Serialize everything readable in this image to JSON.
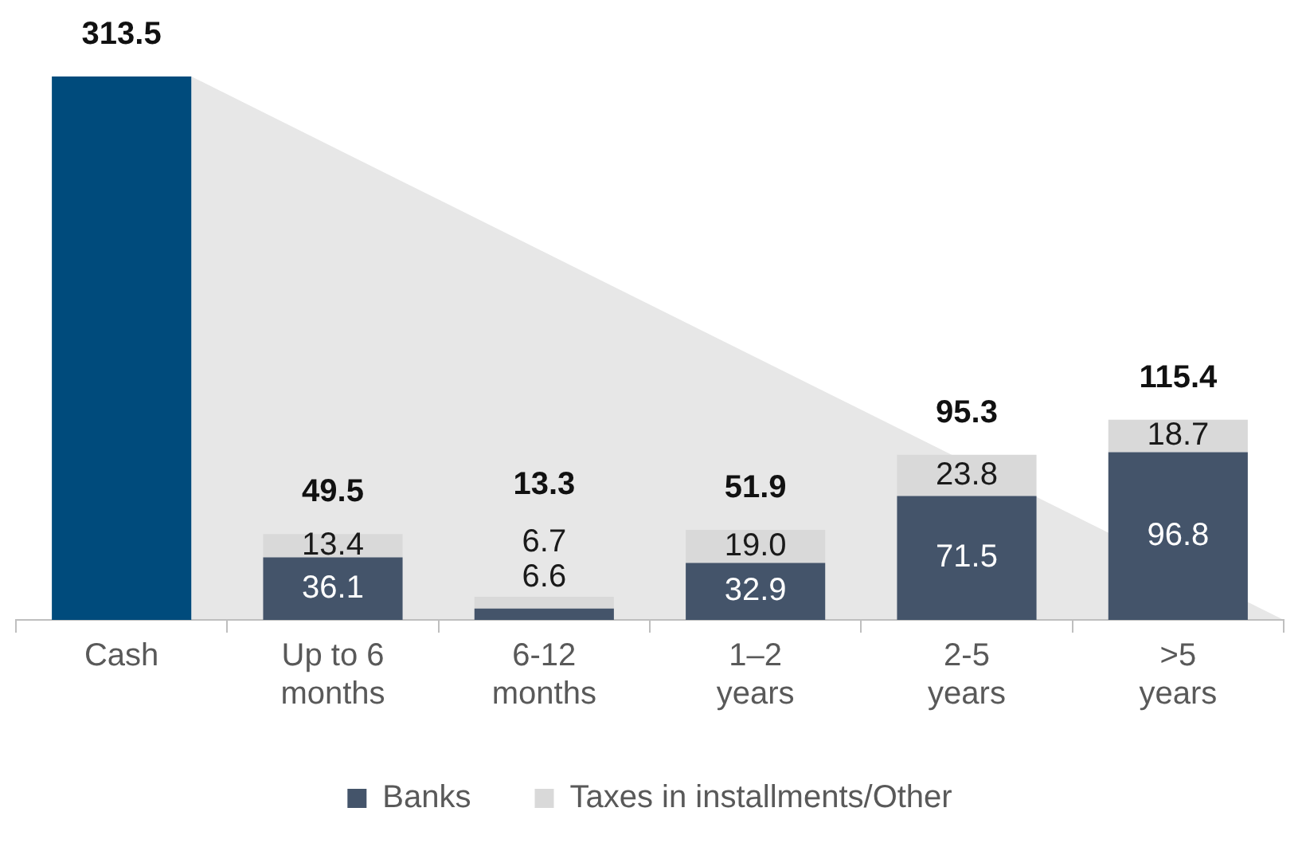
{
  "chart_data": {
    "type": "bar",
    "stacked": true,
    "legend": "bottom",
    "grid": false,
    "categories": [
      "Cash",
      "Up to 6 months",
      "6-12 months",
      "1–2 years",
      "2-5 years",
      ">5 years"
    ],
    "series": [
      {
        "color": "#004b7c",
        "values": [
          313.5,
          null,
          null,
          null,
          null,
          null
        ],
        "value_labels": [
          null,
          null,
          null,
          null,
          null,
          null
        ]
      },
      {
        "name": "Banks",
        "color": "#44546a",
        "values": [
          null,
          36.1,
          6.6,
          32.9,
          71.5,
          96.8
        ],
        "value_labels": [
          null,
          "36.1",
          "6.6",
          "32.9",
          "71.5",
          "96.8"
        ]
      },
      {
        "name": "Taxes in installments/Other",
        "color": "#d9d9d9",
        "values": [
          null,
          13.4,
          6.7,
          19.0,
          23.8,
          18.7
        ],
        "value_labels": [
          null,
          "13.4",
          "6.7",
          "19.0",
          "23.8",
          "18.7"
        ]
      }
    ],
    "totals": [
      "313.5",
      "49.5",
      "13.3",
      "51.9",
      "95.3",
      "115.4"
    ]
  }
}
